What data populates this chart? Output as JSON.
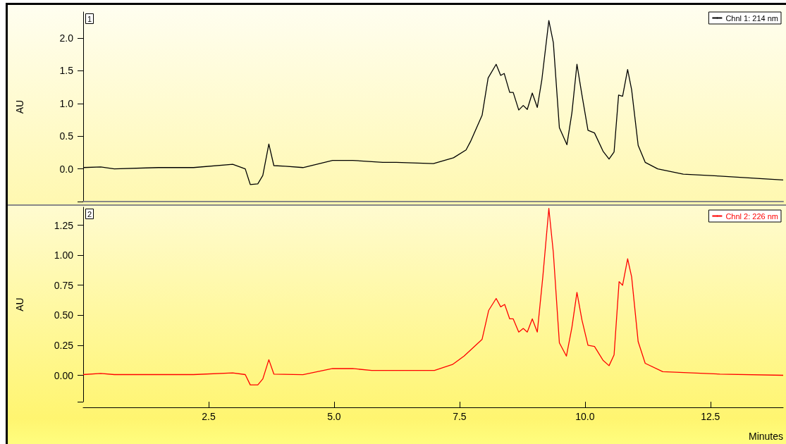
{
  "chart_data": [
    {
      "type": "line",
      "title": "1",
      "ylabel": "AU",
      "xlim": [
        0,
        13.95
      ],
      "ylim": [
        -0.5,
        2.4
      ],
      "yticks": [
        {
          "value": -0.5,
          "label": null
        },
        {
          "value": 0,
          "label": "0.0"
        },
        {
          "value": 0.5,
          "label": "0.5"
        },
        {
          "value": 1,
          "label": "1.0"
        },
        {
          "value": 1.5,
          "label": "1.5"
        },
        {
          "value": 2,
          "label": "2.0"
        }
      ],
      "tick_labels": "y",
      "grid": false,
      "legend": "top right",
      "marker": "none",
      "line_style": "solid",
      "series": [
        {
          "name": "Chnl 1: 214 nm",
          "color": "#000000",
          "x": [
            0,
            0.35,
            0.62,
            1.5,
            2.2,
            2.98,
            3.23,
            3.33,
            3.48,
            3.58,
            3.7,
            3.8,
            4.03,
            4.38,
            4.97,
            5.37,
            5.97,
            6.24,
            6.98,
            7.38,
            7.63,
            7.72,
            7.95,
            8.07,
            8.23,
            8.32,
            8.39,
            8.5,
            8.57,
            8.68,
            8.77,
            8.85,
            8.95,
            9.05,
            9.14,
            9.28,
            9.37,
            9.49,
            9.64,
            9.74,
            9.84,
            9.94,
            10.06,
            10.19,
            10.36,
            10.48,
            10.58,
            10.67,
            10.75,
            10.85,
            10.93,
            11.06,
            11.2,
            11.45,
            11.96,
            12.69,
            13.95
          ],
          "values": [
            0.02,
            0.03,
            0.0,
            0.02,
            0.02,
            0.07,
            0.0,
            -0.24,
            -0.23,
            -0.1,
            0.38,
            0.05,
            0.04,
            0.02,
            0.13,
            0.13,
            0.1,
            0.1,
            0.08,
            0.17,
            0.29,
            0.42,
            0.82,
            1.39,
            1.6,
            1.43,
            1.46,
            1.17,
            1.17,
            0.9,
            0.97,
            0.91,
            1.16,
            0.94,
            1.36,
            2.27,
            1.93,
            0.63,
            0.37,
            0.86,
            1.6,
            1.13,
            0.59,
            0.55,
            0.27,
            0.15,
            0.26,
            1.13,
            1.11,
            1.52,
            1.21,
            0.36,
            0.1,
            0.0,
            -0.08,
            -0.11,
            -0.17
          ]
        }
      ]
    },
    {
      "type": "line",
      "title": "2",
      "ylabel": "AU",
      "xlabel": "Minutes",
      "xlim": [
        0,
        13.95
      ],
      "xticks": [
        {
          "value": 2.5,
          "label": "2.5"
        },
        {
          "value": 5,
          "label": "5.0"
        },
        {
          "value": 7.5,
          "label": "7.5"
        },
        {
          "value": 10,
          "label": "10.0"
        },
        {
          "value": 12.5,
          "label": "12.5"
        }
      ],
      "ylim": [
        -0.22,
        1.4
      ],
      "yticks": [
        {
          "value": -0.22,
          "label": null
        },
        {
          "value": 0,
          "label": "0.00"
        },
        {
          "value": 0.25,
          "label": "0.25"
        },
        {
          "value": 0.5,
          "label": "0.50"
        },
        {
          "value": 0.75,
          "label": "0.75"
        },
        {
          "value": 1,
          "label": "1.00"
        },
        {
          "value": 1.25,
          "label": "1.25"
        }
      ],
      "grid": false,
      "legend": "top right",
      "marker": "none",
      "line_style": "solid",
      "series": [
        {
          "name": "Chnl 2: 226 nm",
          "color": "#ff0000",
          "x": [
            0,
            0.35,
            0.62,
            1.5,
            2.2,
            2.98,
            3.23,
            3.33,
            3.48,
            3.58,
            3.7,
            3.8,
            4.38,
            4.97,
            5.37,
            5.75,
            6.24,
            7.0,
            7.36,
            7.59,
            7.95,
            8.08,
            8.23,
            8.32,
            8.4,
            8.5,
            8.57,
            8.68,
            8.77,
            8.85,
            8.95,
            9.05,
            9.16,
            9.28,
            9.37,
            9.49,
            9.63,
            9.74,
            9.84,
            9.94,
            10.06,
            10.19,
            10.36,
            10.48,
            10.58,
            10.68,
            10.75,
            10.85,
            10.93,
            11.06,
            11.2,
            11.55,
            12.69,
            13.95
          ],
          "values": [
            0.006,
            0.015,
            0.006,
            0.006,
            0.006,
            0.02,
            0.006,
            -0.08,
            -0.08,
            -0.03,
            0.13,
            0.01,
            0.005,
            0.056,
            0.056,
            0.04,
            0.04,
            0.04,
            0.09,
            0.16,
            0.3,
            0.54,
            0.64,
            0.57,
            0.59,
            0.47,
            0.47,
            0.36,
            0.39,
            0.36,
            0.47,
            0.36,
            0.82,
            1.39,
            1.02,
            0.27,
            0.16,
            0.4,
            0.69,
            0.46,
            0.25,
            0.24,
            0.125,
            0.08,
            0.17,
            0.78,
            0.75,
            0.97,
            0.82,
            0.28,
            0.1,
            0.03,
            0.01,
            0.0
          ]
        }
      ]
    }
  ]
}
